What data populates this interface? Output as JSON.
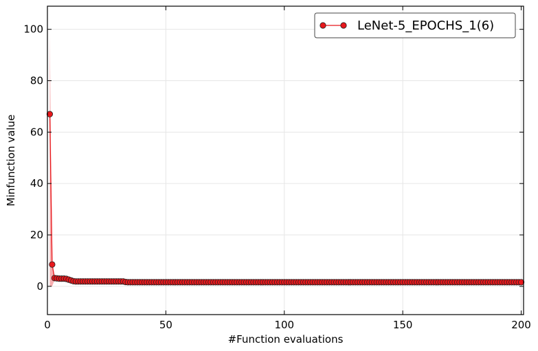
{
  "chart_data": {
    "type": "line",
    "xlabel": "#Function evaluations",
    "ylabel": "Minfunction value",
    "xlim": [
      0,
      201
    ],
    "ylim": [
      -11,
      109
    ],
    "xticks": [
      "0",
      "50",
      "100",
      "150",
      "200"
    ],
    "yticks": [
      "0",
      "20",
      "40",
      "60",
      "80",
      "100"
    ],
    "grid": true,
    "legend_position": "top-right",
    "series": [
      {
        "name": "LeNet-5_EPOCHS_1(6)",
        "color": "#e8181c",
        "marker": "circle",
        "x_start": 1,
        "x_end": 200,
        "values": [
          67,
          8.5,
          3.2,
          3.1,
          3.0,
          3.0,
          3.0,
          2.9,
          2.6,
          2.3,
          2.0,
          1.9,
          1.9,
          1.9,
          1.9,
          1.9,
          1.9,
          1.9,
          1.9,
          1.9,
          1.9,
          1.9,
          1.9,
          1.9,
          1.9,
          1.9,
          1.9,
          1.9,
          1.9,
          1.9,
          1.9,
          1.9,
          1.7
        ],
        "tail_value": 1.6,
        "band_upper": [
          99,
          9.0,
          3.9,
          3.9,
          3.9,
          3.9,
          3.9,
          3.7,
          3.3,
          2.9,
          2.5,
          2.3
        ],
        "band_lower": [
          0,
          0,
          2.4,
          2.4,
          2.4,
          2.4,
          2.4,
          2.2,
          2.0,
          1.8,
          1.6,
          1.6
        ]
      }
    ]
  }
}
